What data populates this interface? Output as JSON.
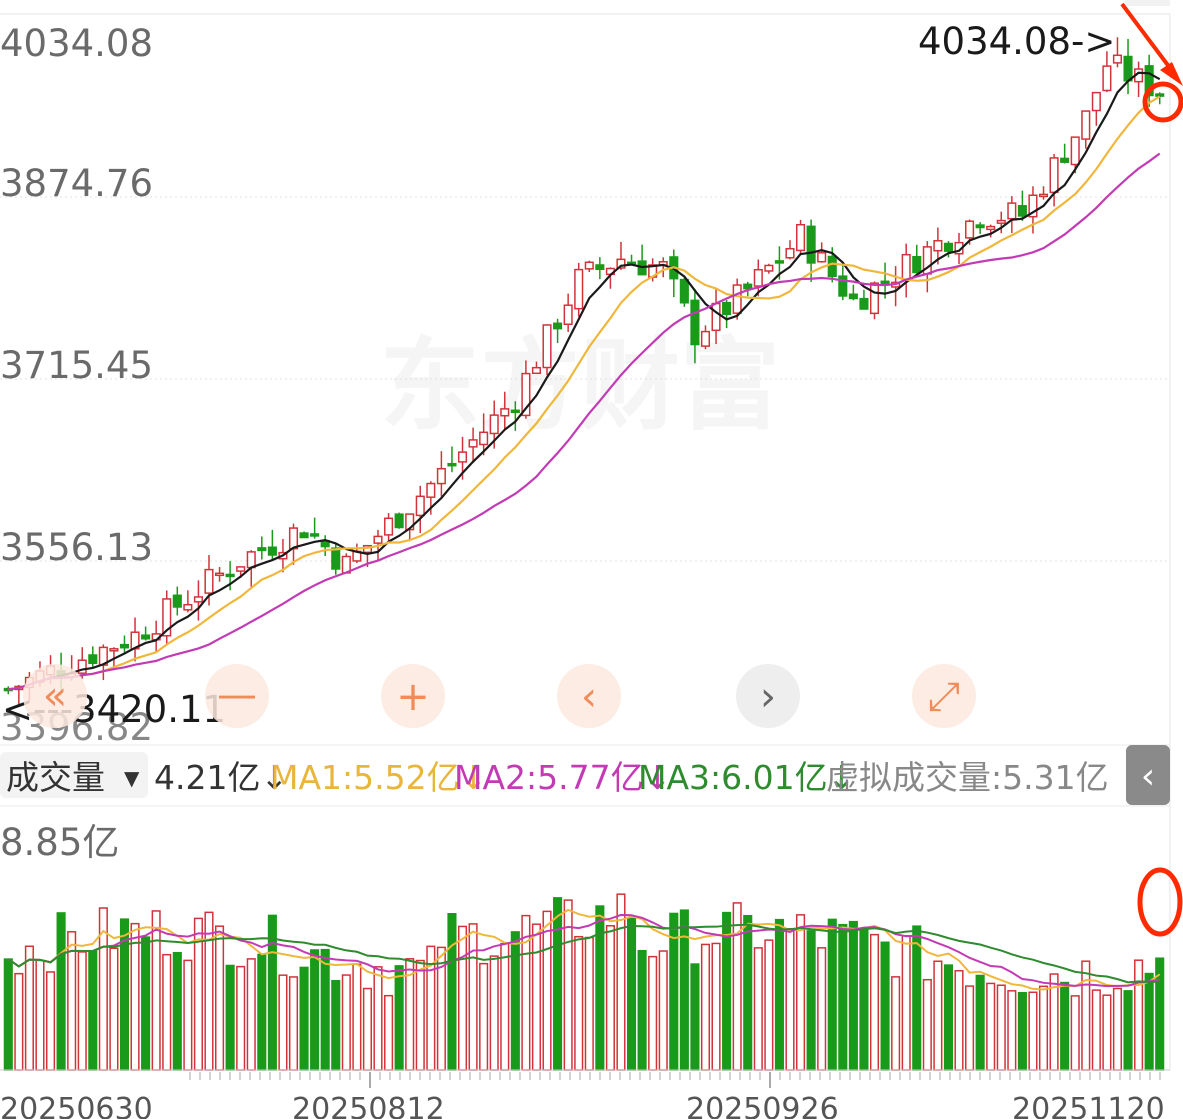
{
  "price_axis": {
    "labels": [
      "4034.08",
      "3874.76",
      "3715.45",
      "3556.13",
      "3396.82"
    ],
    "max_marker": "4034.08->",
    "min_marker": "<---3420.11"
  },
  "watermark": "东方财富",
  "controls": {
    "prev": "«",
    "zoom_out": "—",
    "zoom_in": "+",
    "left": "‹",
    "right": "›",
    "expand": "⤢"
  },
  "volume_legend": {
    "indicator": "成交量",
    "dropdown_arrow": "▼",
    "current": "4.21亿↓",
    "ma1": "MA1:5.52亿↓",
    "ma2": "MA2:5.77亿↓",
    "ma3": "MA3:6.01亿↓",
    "virtual": "虚拟成交量:5.31亿",
    "collapse_icon": "‹"
  },
  "volume_axis": {
    "max_label": "8.85亿"
  },
  "x_axis": {
    "dates": [
      "20250630",
      "20250812",
      "20250926",
      "20251120"
    ]
  },
  "colors": {
    "up": "#d0343a",
    "down": "#1a9a1a",
    "ma_black": "#1a1a1a",
    "ma_yellow": "#f0b73a",
    "ma_magenta": "#c33ab5",
    "ma_green": "#2e8b2e",
    "annotation_red": "#ff2a00"
  },
  "chart_data": [
    {
      "type": "candlestick",
      "title": "",
      "yticks": [
        4034.08,
        3874.76,
        3715.45,
        3556.13,
        3396.82
      ],
      "ylim": [
        3396.82,
        4034.08
      ],
      "max_value": 4034.08,
      "min_value": 3420.11,
      "candle_count": 110,
      "start_close": 3430,
      "path_anchors": [
        [
          0,
          3430
        ],
        [
          12,
          3480
        ],
        [
          22,
          3550
        ],
        [
          28,
          3580
        ],
        [
          32,
          3545
        ],
        [
          40,
          3620
        ],
        [
          48,
          3700
        ],
        [
          54,
          3810
        ],
        [
          58,
          3830
        ],
        [
          62,
          3820
        ],
        [
          65,
          3760
        ],
        [
          70,
          3800
        ],
        [
          75,
          3850
        ],
        [
          80,
          3790
        ],
        [
          86,
          3830
        ],
        [
          92,
          3870
        ],
        [
          96,
          3870
        ],
        [
          102,
          3960
        ],
        [
          104,
          4010
        ],
        [
          108,
          3990
        ],
        [
          109,
          3985
        ]
      ],
      "series": [
        {
          "name": "MA1",
          "kind": "moving_average",
          "color": "black"
        },
        {
          "name": "MA2",
          "kind": "moving_average",
          "color": "yellow"
        },
        {
          "name": "MA3",
          "kind": "moving_average",
          "color": "magenta"
        }
      ]
    },
    {
      "type": "bar",
      "title": "成交量",
      "unit": "亿",
      "ymax_label": 8.85,
      "current_volume": 4.21,
      "ma1": 5.52,
      "ma2": 5.77,
      "ma3": 6.01,
      "virtual_volume": 5.31,
      "x_dates": [
        "20250630",
        "20250812",
        "20250926",
        "20251120"
      ]
    }
  ]
}
